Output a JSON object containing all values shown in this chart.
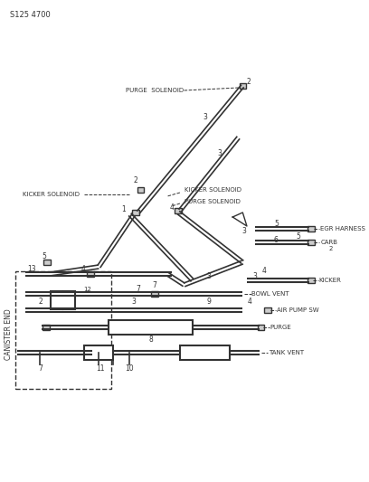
{
  "title": "S125 4700",
  "bg_color": "#ffffff",
  "line_color": "#333333",
  "text_color": "#333333",
  "fig_width": 4.08,
  "fig_height": 5.33,
  "labels": {
    "title": "S125 4700",
    "purge_solenoid_top": "PURGE  SOLENOID",
    "kicker_solenoid_left": "KICKER SOLENOID",
    "kicker_solenoid_right": "KICKER SOLENOID",
    "purge_solenoid_right": "PURGE SOLENOID",
    "egr_harness": "EGR HARNESS",
    "carb": "CARB",
    "kicker": "KICKER",
    "bowl_vent": "BOWL VENT",
    "air_pump_sw": "AIR PUMP SW",
    "purge": "PURGE",
    "tank_vent": "TANK VENT",
    "canister_end": "CANISTER END"
  }
}
